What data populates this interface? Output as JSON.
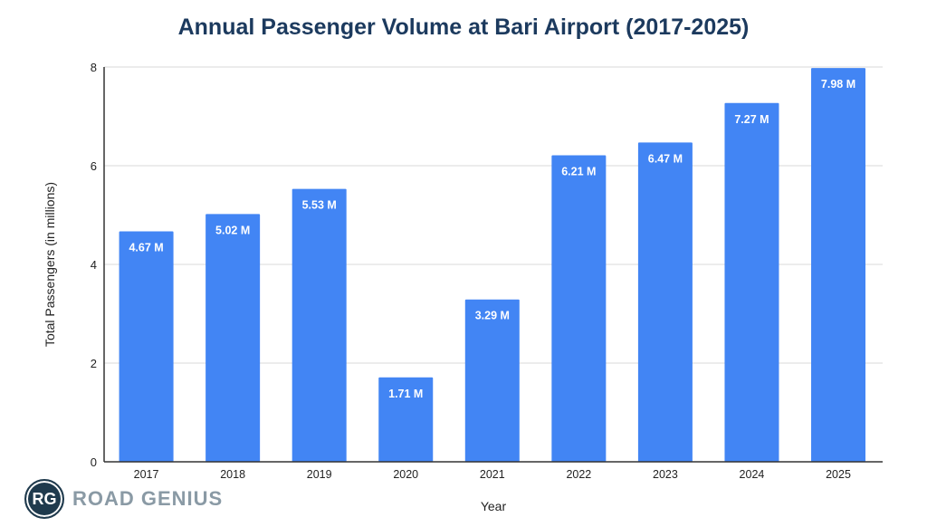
{
  "chart_data": {
    "type": "bar",
    "title": "Annual Passenger Volume at Bari Airport (2017-2025)",
    "xlabel": "Year",
    "ylabel": "Total Passengers (in millions)",
    "categories": [
      "2017",
      "2018",
      "2019",
      "2020",
      "2021",
      "2022",
      "2023",
      "2024",
      "2025"
    ],
    "values": [
      4.67,
      5.02,
      5.53,
      1.71,
      3.29,
      6.21,
      6.47,
      7.27,
      7.98
    ],
    "data_labels": [
      "4.67 M",
      "5.02 M",
      "5.53 M",
      "1.71 M",
      "3.29 M",
      "6.21 M",
      "6.47 M",
      "7.27 M",
      "7.98 M"
    ],
    "ylim": [
      0,
      8
    ],
    "yticks": [
      0,
      2,
      4,
      6,
      8
    ],
    "grid": true,
    "bar_color": "#4285f4",
    "title_color": "#1c3a5e"
  },
  "logo": {
    "initials": "RG",
    "text": "ROAD GENIUS"
  }
}
